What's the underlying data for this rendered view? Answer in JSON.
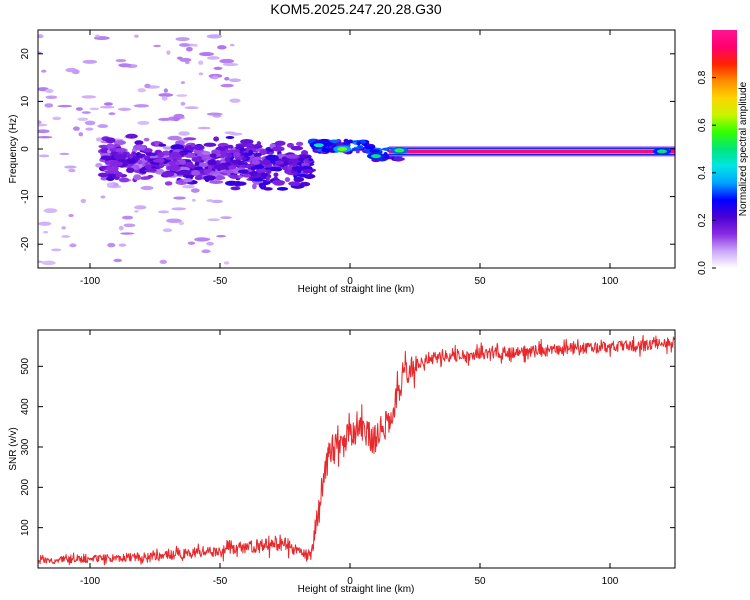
{
  "title": "KOM5.2025.247.20.28.G30",
  "colorbar": {
    "label": "Normalized spectral amplitude",
    "ticks": [
      0.0,
      0.2,
      0.4,
      0.6,
      0.8
    ],
    "tick_labels": [
      "0.0",
      "0.2",
      "0.4",
      "0.6",
      "0.8"
    ],
    "range": [
      0,
      1
    ],
    "colormap": [
      "#ffffff",
      "#c9a6f7",
      "#8a2be2",
      "#4b00d4",
      "#0000ff",
      "#00a2ff",
      "#00e5e5",
      "#00e67a",
      "#33ff00",
      "#c8f500",
      "#ffd400",
      "#ff8c00",
      "#ff2200",
      "#ff006e",
      "#ff1493"
    ]
  },
  "chart_data": [
    {
      "type": "heatmap",
      "xlabel": "Height of straight line (km)",
      "ylabel": "Frequency (Hz)",
      "xlim": [
        -120,
        125
      ],
      "ylim": [
        -25,
        25
      ],
      "xticks": [
        -100,
        -50,
        0,
        50,
        100
      ],
      "xtick_labels": [
        "-100",
        "-50",
        "0",
        "50",
        "100"
      ],
      "yticks": [
        -20,
        -10,
        0,
        10,
        20
      ],
      "ytick_labels": [
        "-20",
        "-10",
        "0",
        "10",
        "20"
      ],
      "features": {
        "steady_band": {
          "x_start": 15,
          "x_end": 125,
          "frequency_hz": -0.5,
          "amplitude": 0.95
        },
        "bright_spots": [
          {
            "x": -12,
            "y": 0.8,
            "amplitude": 0.45
          },
          {
            "x": -3,
            "y": 0,
            "amplitude": 0.6
          },
          {
            "x": 10,
            "y": -1.5,
            "amplitude": 0.5
          },
          {
            "x": 19,
            "y": -0.3,
            "amplitude": 0.55
          },
          {
            "x": 120,
            "y": -0.5,
            "amplitude": 0.5
          }
        ],
        "noise_region": {
          "x_start": -120,
          "x_end": -15,
          "frequency_center": -2,
          "frequency_spread": 4
        }
      }
    },
    {
      "type": "line",
      "xlabel": "Height of straight line (km)",
      "ylabel": "SNR (v/v)",
      "xlim": [
        -120,
        125
      ],
      "ylim": [
        0,
        590
      ],
      "xticks": [
        -100,
        -50,
        0,
        50,
        100
      ],
      "xtick_labels": [
        "-100",
        "-50",
        "0",
        "50",
        "100"
      ],
      "yticks": [
        100,
        200,
        300,
        400,
        500
      ],
      "ytick_labels": [
        "100",
        "200",
        "300",
        "400",
        "500"
      ],
      "color": "#e8282b",
      "series": [
        {
          "x": [
            -120,
            -110,
            -100,
            -90,
            -80,
            -70,
            -60,
            -50,
            -40,
            -30,
            -25,
            -20,
            -15,
            -12,
            -10,
            -8,
            -5,
            -2,
            0,
            3,
            5,
            8,
            10,
            12,
            15,
            18,
            20,
            25,
            30,
            40,
            50,
            60,
            70,
            80,
            90,
            100,
            110,
            120,
            125
          ],
          "y": [
            18,
            20,
            22,
            25,
            28,
            32,
            38,
            42,
            52,
            58,
            60,
            40,
            30,
            140,
            230,
            280,
            300,
            320,
            330,
            340,
            350,
            320,
            320,
            340,
            360,
            420,
            470,
            500,
            520,
            525,
            530,
            535,
            537,
            540,
            545,
            548,
            550,
            555,
            560
          ]
        }
      ]
    }
  ]
}
